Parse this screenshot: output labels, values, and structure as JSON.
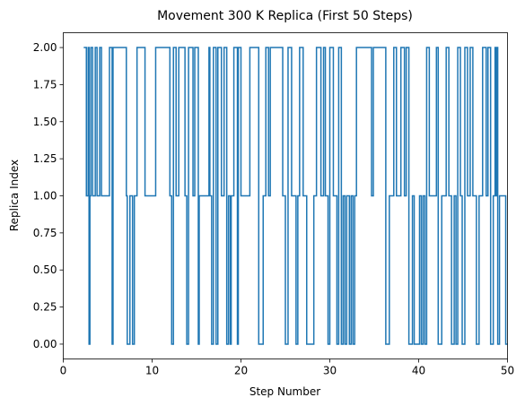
{
  "chart_data": {
    "type": "line",
    "title": "Movement 300 K Replica (First 50 Steps)",
    "xlabel": "Step Number",
    "ylabel": "Replica Index",
    "xlim": [
      0,
      50
    ],
    "ylim": [
      -0.1,
      2.1
    ],
    "xticks": [
      0,
      10,
      20,
      30,
      40,
      50
    ],
    "xtick_labels": [
      "0",
      "10",
      "20",
      "30",
      "40",
      "50"
    ],
    "yticks": [
      0,
      0.25,
      0.5,
      0.75,
      1.0,
      1.25,
      1.5,
      1.75,
      2.0
    ],
    "ytick_labels": [
      "0.00",
      "0.25",
      "0.50",
      "0.75",
      "1.00",
      "1.25",
      "1.50",
      "1.75",
      "2.00"
    ],
    "grid": false,
    "line_style": "steps-post",
    "series": [
      {
        "color": "#1f77b4",
        "points": [
          [
            2.3,
            2
          ],
          [
            2.6,
            1
          ],
          [
            2.8,
            2
          ],
          [
            2.9,
            0
          ],
          [
            3.0,
            1
          ],
          [
            3.1,
            2
          ],
          [
            3.3,
            1
          ],
          [
            3.6,
            2
          ],
          [
            3.8,
            1
          ],
          [
            4.1,
            2
          ],
          [
            4.3,
            1
          ],
          [
            5.2,
            2
          ],
          [
            5.5,
            0
          ],
          [
            5.6,
            2
          ],
          [
            7.1,
            1
          ],
          [
            7.2,
            0
          ],
          [
            7.5,
            1
          ],
          [
            7.8,
            0
          ],
          [
            8.0,
            1
          ],
          [
            8.3,
            2
          ],
          [
            9.2,
            1
          ],
          [
            10.4,
            2
          ],
          [
            12.0,
            1
          ],
          [
            12.2,
            0
          ],
          [
            12.4,
            2
          ],
          [
            12.7,
            1
          ],
          [
            13.0,
            2
          ],
          [
            13.7,
            1
          ],
          [
            13.9,
            0
          ],
          [
            14.1,
            2
          ],
          [
            14.6,
            1
          ],
          [
            14.8,
            2
          ],
          [
            15.2,
            0
          ],
          [
            15.3,
            1
          ],
          [
            16.4,
            2
          ],
          [
            16.5,
            1
          ],
          [
            16.7,
            0
          ],
          [
            16.9,
            2
          ],
          [
            17.2,
            0
          ],
          [
            17.4,
            2
          ],
          [
            17.8,
            1
          ],
          [
            18.1,
            2
          ],
          [
            18.4,
            0
          ],
          [
            18.6,
            1
          ],
          [
            18.8,
            0
          ],
          [
            18.9,
            1
          ],
          [
            19.2,
            2
          ],
          [
            19.6,
            0
          ],
          [
            19.7,
            2
          ],
          [
            20.0,
            1
          ],
          [
            21.0,
            2
          ],
          [
            22.0,
            0
          ],
          [
            22.5,
            1
          ],
          [
            22.8,
            2
          ],
          [
            23.1,
            1
          ],
          [
            23.3,
            2
          ],
          [
            24.7,
            1
          ],
          [
            25.0,
            0
          ],
          [
            25.3,
            2
          ],
          [
            25.7,
            1
          ],
          [
            26.2,
            0
          ],
          [
            26.4,
            1
          ],
          [
            26.6,
            2
          ],
          [
            27.0,
            1
          ],
          [
            27.4,
            0
          ],
          [
            28.2,
            1
          ],
          [
            28.5,
            2
          ],
          [
            29.0,
            1
          ],
          [
            29.3,
            2
          ],
          [
            29.5,
            1
          ],
          [
            29.8,
            0
          ],
          [
            30.0,
            2
          ],
          [
            30.4,
            1
          ],
          [
            30.8,
            0
          ],
          [
            31.0,
            2
          ],
          [
            31.3,
            0
          ],
          [
            31.5,
            1
          ],
          [
            31.7,
            0
          ],
          [
            31.9,
            1
          ],
          [
            32.2,
            0
          ],
          [
            32.4,
            1
          ],
          [
            32.6,
            0
          ],
          [
            32.8,
            1
          ],
          [
            33.0,
            2
          ],
          [
            34.7,
            1
          ],
          [
            34.9,
            2
          ],
          [
            36.3,
            0
          ],
          [
            36.7,
            1
          ],
          [
            37.2,
            2
          ],
          [
            37.5,
            1
          ],
          [
            38.0,
            2
          ],
          [
            38.4,
            1
          ],
          [
            38.6,
            2
          ],
          [
            38.9,
            0
          ],
          [
            39.3,
            1
          ],
          [
            39.5,
            0
          ],
          [
            40.1,
            1
          ],
          [
            40.3,
            0
          ],
          [
            40.5,
            1
          ],
          [
            40.7,
            0
          ],
          [
            40.9,
            2
          ],
          [
            41.2,
            1
          ],
          [
            42.0,
            2
          ],
          [
            42.2,
            0
          ],
          [
            42.6,
            1
          ],
          [
            43.1,
            2
          ],
          [
            43.4,
            1
          ],
          [
            43.7,
            0
          ],
          [
            44.0,
            1
          ],
          [
            44.2,
            0
          ],
          [
            44.4,
            2
          ],
          [
            44.7,
            1
          ],
          [
            44.9,
            0
          ],
          [
            45.2,
            2
          ],
          [
            45.5,
            1
          ],
          [
            45.8,
            2
          ],
          [
            46.1,
            1
          ],
          [
            46.5,
            0
          ],
          [
            46.8,
            1
          ],
          [
            47.2,
            2
          ],
          [
            47.6,
            1
          ],
          [
            47.8,
            2
          ],
          [
            48.1,
            0
          ],
          [
            48.4,
            1
          ],
          [
            48.6,
            2
          ],
          [
            48.7,
            1
          ],
          [
            48.8,
            2
          ],
          [
            48.9,
            0
          ],
          [
            49.1,
            1
          ],
          [
            49.8,
            0
          ],
          [
            50.0,
            0
          ]
        ]
      }
    ]
  }
}
